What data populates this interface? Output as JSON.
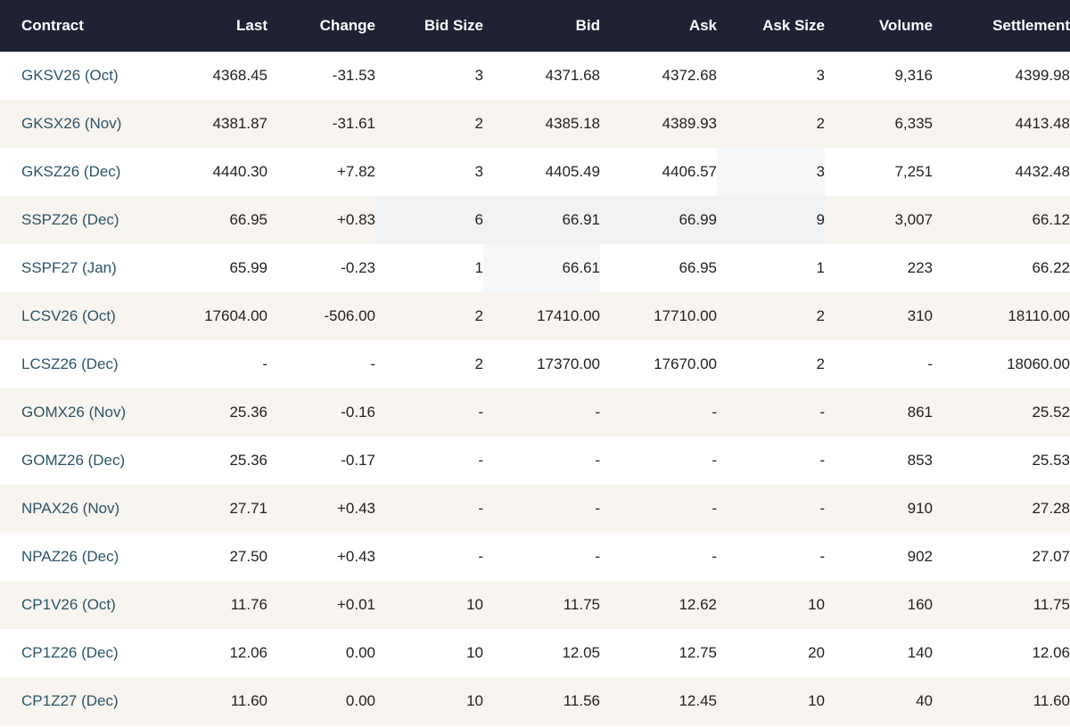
{
  "table": {
    "headers": {
      "contract": "Contract",
      "last": "Last",
      "change": "Change",
      "bid_size": "Bid Size",
      "bid": "Bid",
      "ask": "Ask",
      "ask_size": "Ask Size",
      "volume": "Volume",
      "settlement": "Settlement"
    },
    "rows": [
      {
        "contract": "GKSV26 (Oct)",
        "last": "4368.45",
        "change": "-31.53",
        "bid_size": "3",
        "bid": "4371.68",
        "ask": "4372.68",
        "ask_size": "3",
        "volume": "9,316",
        "settlement": "4399.98"
      },
      {
        "contract": "GKSX26 (Nov)",
        "last": "4381.87",
        "change": "-31.61",
        "bid_size": "2",
        "bid": "4385.18",
        "ask": "4389.93",
        "ask_size": "2",
        "volume": "6,335",
        "settlement": "4413.48"
      },
      {
        "contract": "GKSZ26 (Dec)",
        "last": "4440.30",
        "change": "+7.82",
        "bid_size": "3",
        "bid": "4405.49",
        "ask": "4406.57",
        "ask_size": "3",
        "volume": "7,251",
        "settlement": "4432.48"
      },
      {
        "contract": "SSPZ26 (Dec)",
        "last": "66.95",
        "change": "+0.83",
        "bid_size": "6",
        "bid": "66.91",
        "ask": "66.99",
        "ask_size": "9",
        "volume": "3,007",
        "settlement": "66.12"
      },
      {
        "contract": "SSPF27 (Jan)",
        "last": "65.99",
        "change": "-0.23",
        "bid_size": "1",
        "bid": "66.61",
        "ask": "66.95",
        "ask_size": "1",
        "volume": "223",
        "settlement": "66.22"
      },
      {
        "contract": "LCSV26 (Oct)",
        "last": "17604.00",
        "change": "-506.00",
        "bid_size": "2",
        "bid": "17410.00",
        "ask": "17710.00",
        "ask_size": "2",
        "volume": "310",
        "settlement": "18110.00"
      },
      {
        "contract": "LCSZ26 (Dec)",
        "last": "-",
        "change": "-",
        "bid_size": "2",
        "bid": "17370.00",
        "ask": "17670.00",
        "ask_size": "2",
        "volume": "-",
        "settlement": "18060.00"
      },
      {
        "contract": "GOMX26 (Nov)",
        "last": "25.36",
        "change": "-0.16",
        "bid_size": "-",
        "bid": "-",
        "ask": "-",
        "ask_size": "-",
        "volume": "861",
        "settlement": "25.52"
      },
      {
        "contract": "GOMZ26 (Dec)",
        "last": "25.36",
        "change": "-0.17",
        "bid_size": "-",
        "bid": "-",
        "ask": "-",
        "ask_size": "-",
        "volume": "853",
        "settlement": "25.53"
      },
      {
        "contract": "NPAX26 (Nov)",
        "last": "27.71",
        "change": "+0.43",
        "bid_size": "-",
        "bid": "-",
        "ask": "-",
        "ask_size": "-",
        "volume": "910",
        "settlement": "27.28"
      },
      {
        "contract": "NPAZ26 (Dec)",
        "last": "27.50",
        "change": "+0.43",
        "bid_size": "-",
        "bid": "-",
        "ask": "-",
        "ask_size": "-",
        "volume": "902",
        "settlement": "27.07"
      },
      {
        "contract": "CP1V26 (Oct)",
        "last": "11.76",
        "change": "+0.01",
        "bid_size": "10",
        "bid": "11.75",
        "ask": "12.62",
        "ask_size": "10",
        "volume": "160",
        "settlement": "11.75"
      },
      {
        "contract": "CP1Z26 (Dec)",
        "last": "12.06",
        "change": "0.00",
        "bid_size": "10",
        "bid": "12.05",
        "ask": "12.75",
        "ask_size": "20",
        "volume": "140",
        "settlement": "12.06"
      },
      {
        "contract": "CP1Z27 (Dec)",
        "last": "11.60",
        "change": "0.00",
        "bid_size": "10",
        "bid": "11.56",
        "ask": "12.45",
        "ask_size": "10",
        "volume": "40",
        "settlement": "11.60"
      }
    ]
  }
}
